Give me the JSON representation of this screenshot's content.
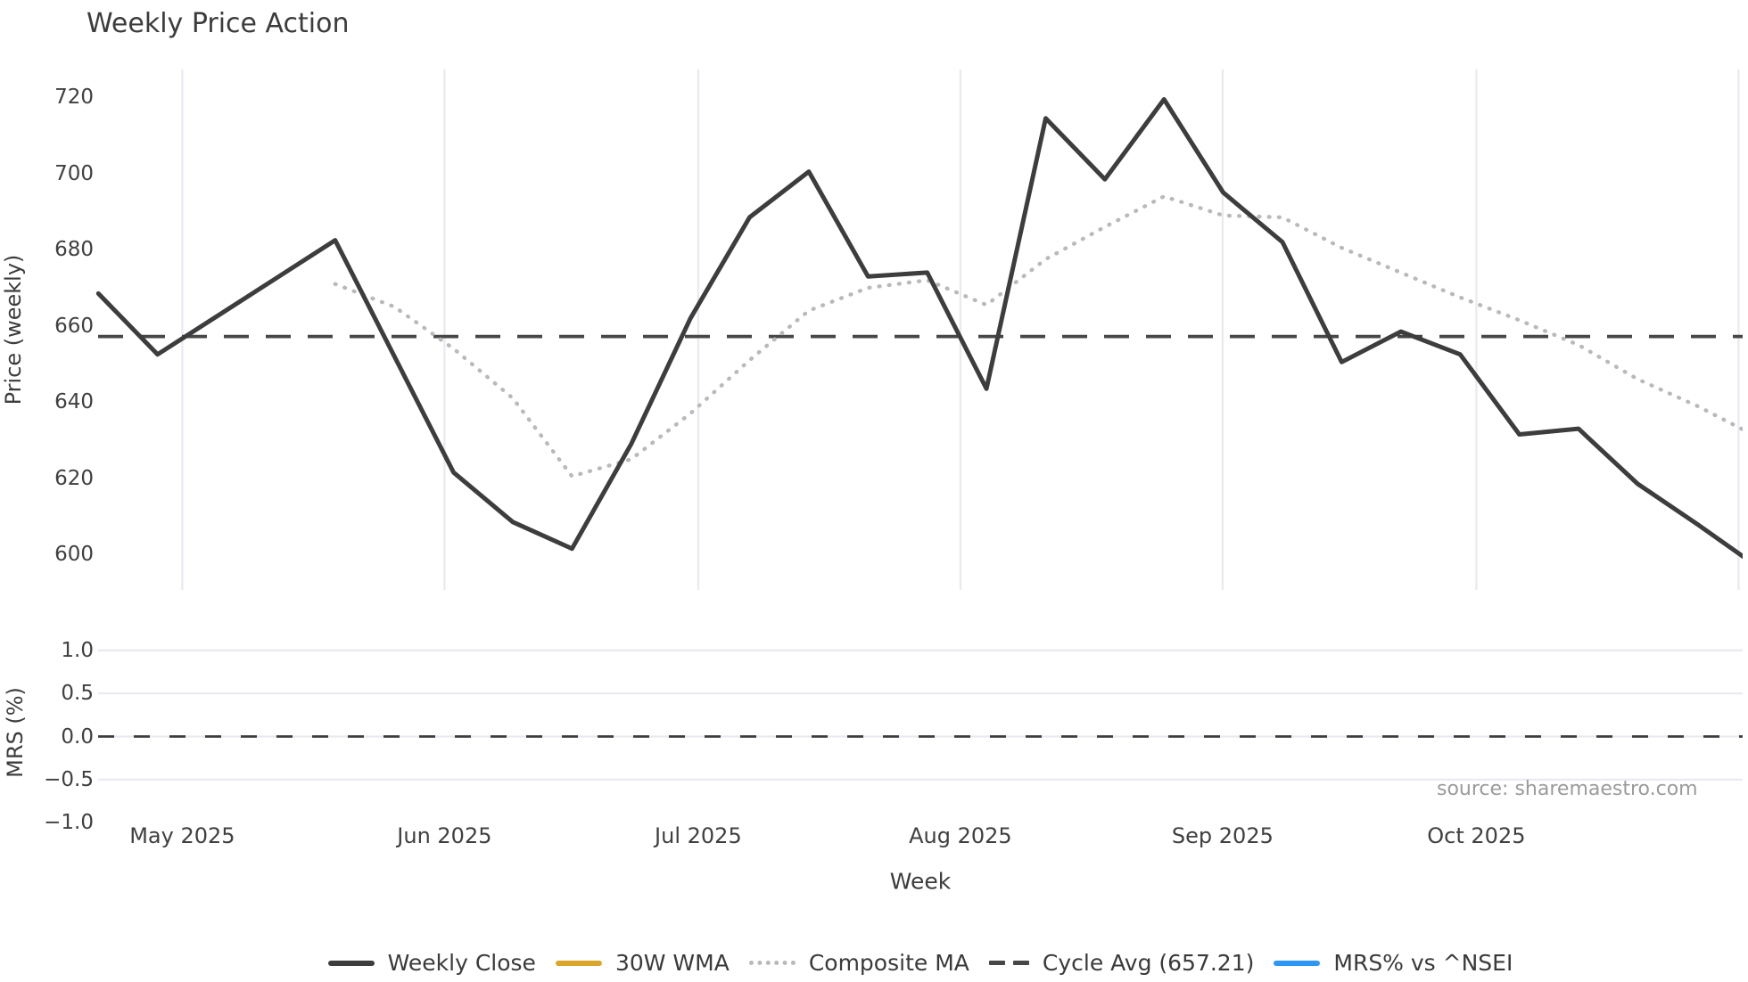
{
  "title": "Weekly Price Action",
  "source": "source: sharemaestro.com",
  "axes": {
    "price_label": "Price (weekly)",
    "mrs_label": "MRS (%)",
    "x_label": "Week",
    "price_ticks": [
      720,
      700,
      680,
      660,
      640,
      620,
      600
    ],
    "mrs_ticks": [
      {
        "label": "1.0",
        "value": 1.0
      },
      {
        "label": "0.5",
        "value": 0.5
      },
      {
        "label": "0.0",
        "value": 0.0
      },
      {
        "label": "−0.5",
        "value": -0.5
      },
      {
        "label": "−1.0",
        "value": -1.0
      }
    ],
    "month_ticks": [
      {
        "label": "May 2025",
        "day": 0
      },
      {
        "label": "Jun 2025",
        "day": 31
      },
      {
        "label": "Jul 2025",
        "day": 61
      },
      {
        "label": "Aug 2025",
        "day": 92
      },
      {
        "label": "Sep 2025",
        "day": 123
      },
      {
        "label": "Oct 2025",
        "day": 153
      }
    ],
    "gridline_days": [
      0,
      31,
      61,
      92,
      123,
      153,
      184
    ]
  },
  "legend": [
    {
      "label": "Weekly Close",
      "color": "#3d3d3d",
      "style": "solid"
    },
    {
      "label": "30W WMA",
      "color": "#d9a62b",
      "style": "solid"
    },
    {
      "label": "Composite MA",
      "color": "#b9b9b9",
      "style": "dotted"
    },
    {
      "label": "Cycle Avg (657.21)",
      "color": "#474747",
      "style": "dashed"
    },
    {
      "label": "MRS% vs ^NSEI",
      "color": "#2e96f5",
      "style": "solid"
    }
  ],
  "chart_data": {
    "type": "line",
    "title": "Weekly Price Action",
    "xlabel": "Week",
    "x_weekly_dates_estimated": [
      "2025-04-21",
      "2025-04-28",
      "2025-05-05",
      "2025-05-12",
      "2025-05-19",
      "2025-05-26",
      "2025-06-02",
      "2025-06-09",
      "2025-06-16",
      "2025-06-23",
      "2025-06-30",
      "2025-07-07",
      "2025-07-14",
      "2025-07-21",
      "2025-07-28",
      "2025-08-04",
      "2025-08-11",
      "2025-08-18",
      "2025-08-25",
      "2025-09-01",
      "2025-09-08",
      "2025-09-15",
      "2025-09-22",
      "2025-09-29",
      "2025-10-06",
      "2025-10-13",
      "2025-10-20",
      "2025-10-27",
      "2025-11-03"
    ],
    "panels": [
      {
        "name": "price",
        "ylabel": "Price (weekly)",
        "ylim": [
          591,
          727
        ],
        "yticks": [
          720,
          700,
          680,
          660,
          640,
          620,
          600
        ],
        "grid": "vertical month gridlines only",
        "series": [
          {
            "name": "Weekly Close",
            "values": [
              668.5,
              652.5,
              662.5,
              672.5,
              682.5,
              652,
              621.5,
              608.5,
              601.5,
              629,
              662,
              688.5,
              700.5,
              673,
              674,
              643.5,
              714.5,
              698.5,
              719.5,
              695,
              682,
              650.5,
              658.5,
              652.5,
              631.5,
              633,
              618.5,
              608,
              597
            ]
          },
          {
            "name": "Composite MA",
            "values": [
              null,
              null,
              null,
              null,
              671,
              665,
              654,
              641,
              620.5,
              625,
              637,
              651,
              664,
              670,
              672,
              665.5,
              677.5,
              686,
              694,
              689,
              688.5,
              680.5,
              674,
              667.5,
              661.5,
              655,
              646,
              639,
              631
            ]
          },
          {
            "name": "Cycle Avg",
            "constant": 657.21,
            "style": "dashed"
          },
          {
            "name": "30W WMA",
            "values": null,
            "note": "legend entry only; no visible line in plotted range"
          }
        ]
      },
      {
        "name": "mrs",
        "ylabel": "MRS (%)",
        "ylim": [
          -1.05,
          1.15
        ],
        "yticks": [
          1.0,
          0.5,
          0.0,
          -0.5,
          -1.0
        ],
        "grid": "horizontal gridlines only",
        "zero_reference_line": 0.0,
        "series": [
          {
            "name": "MRS% vs ^NSEI",
            "values": null,
            "note": "legend entry only; no visible line (flat at zero reference)"
          }
        ]
      }
    ],
    "legend_position": "bottom center",
    "source_note": "source: sharemaestro.com"
  }
}
